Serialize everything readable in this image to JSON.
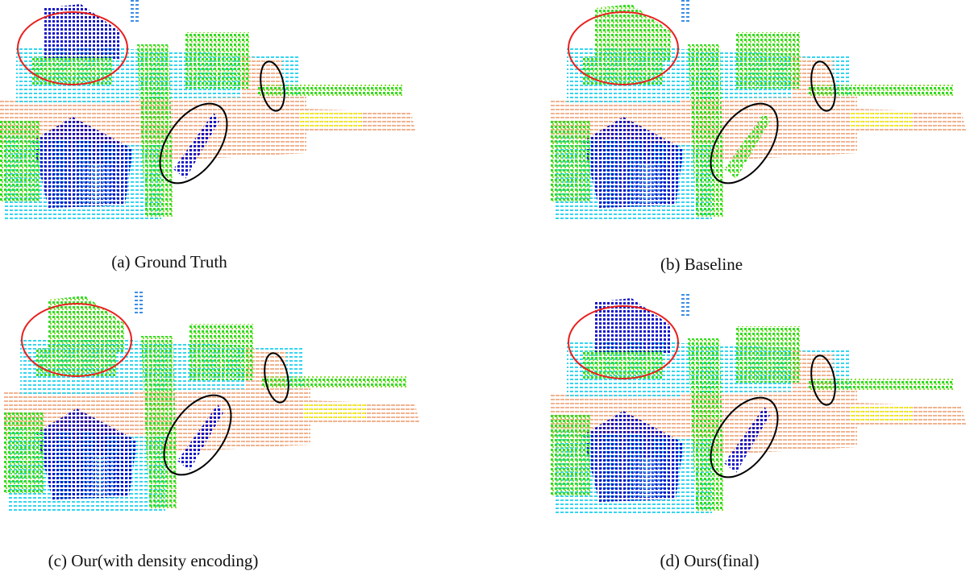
{
  "panels": [
    {
      "caption": "(a) Ground Truth"
    },
    {
      "caption": "(b) Baseline"
    },
    {
      "caption": "(c) Our(with density encoding)"
    },
    {
      "caption": "(d) Ours(final)"
    }
  ]
}
